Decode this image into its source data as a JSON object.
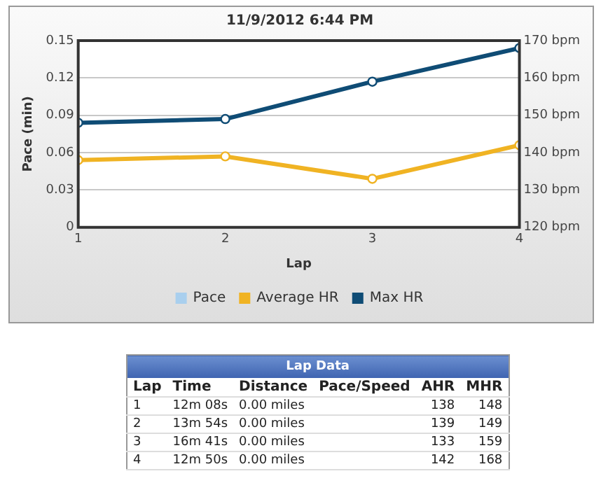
{
  "chart_data": {
    "type": "line",
    "title": "11/9/2012 6:44 PM",
    "xlabel": "Lap",
    "ylabel": "Pace (min)",
    "x": [
      1,
      2,
      3,
      4
    ],
    "xlim": [
      1,
      4
    ],
    "xticks": [
      1,
      2,
      3,
      4
    ],
    "ylim": [
      0,
      0.15
    ],
    "yticks": [
      0,
      0.03,
      0.06,
      0.09,
      0.12,
      0.15
    ],
    "y2lim": [
      120,
      170
    ],
    "y2ticks": [
      {
        "value": 120,
        "label": "120 bpm"
      },
      {
        "value": 130,
        "label": "130 bpm"
      },
      {
        "value": 140,
        "label": "140 bpm"
      },
      {
        "value": 150,
        "label": "150 bpm"
      },
      {
        "value": 160,
        "label": "160 bpm"
      },
      {
        "value": 170,
        "label": "170 bpm"
      }
    ],
    "series": [
      {
        "name": "Pace",
        "color": "#a9cfee",
        "values": [
          null,
          null,
          null,
          null
        ]
      },
      {
        "name": "Average HR",
        "color": "#f0b323",
        "axis": "y2",
        "values": [
          138,
          139,
          133,
          142
        ]
      },
      {
        "name": "Max HR",
        "color": "#0f4c75",
        "axis": "y2",
        "values": [
          148,
          149,
          159,
          168
        ]
      }
    ],
    "grid": "y",
    "legend": "bottom",
    "marker": "circle",
    "line_style": "solid",
    "annotations": [
      "Lap Data",
      "Lap",
      "Time",
      "Distance",
      "Pace/Speed",
      "AHR",
      "MHR",
      "1",
      "12m 08s",
      "0.00 miles",
      "138",
      "148",
      "2",
      "13m 54s",
      "0.00 miles",
      "139",
      "149",
      "3",
      "16m 41s",
      "0.00 miles",
      "133",
      "159",
      "4",
      "12m 50s",
      "0.00 miles",
      "142",
      "168"
    ]
  }
}
